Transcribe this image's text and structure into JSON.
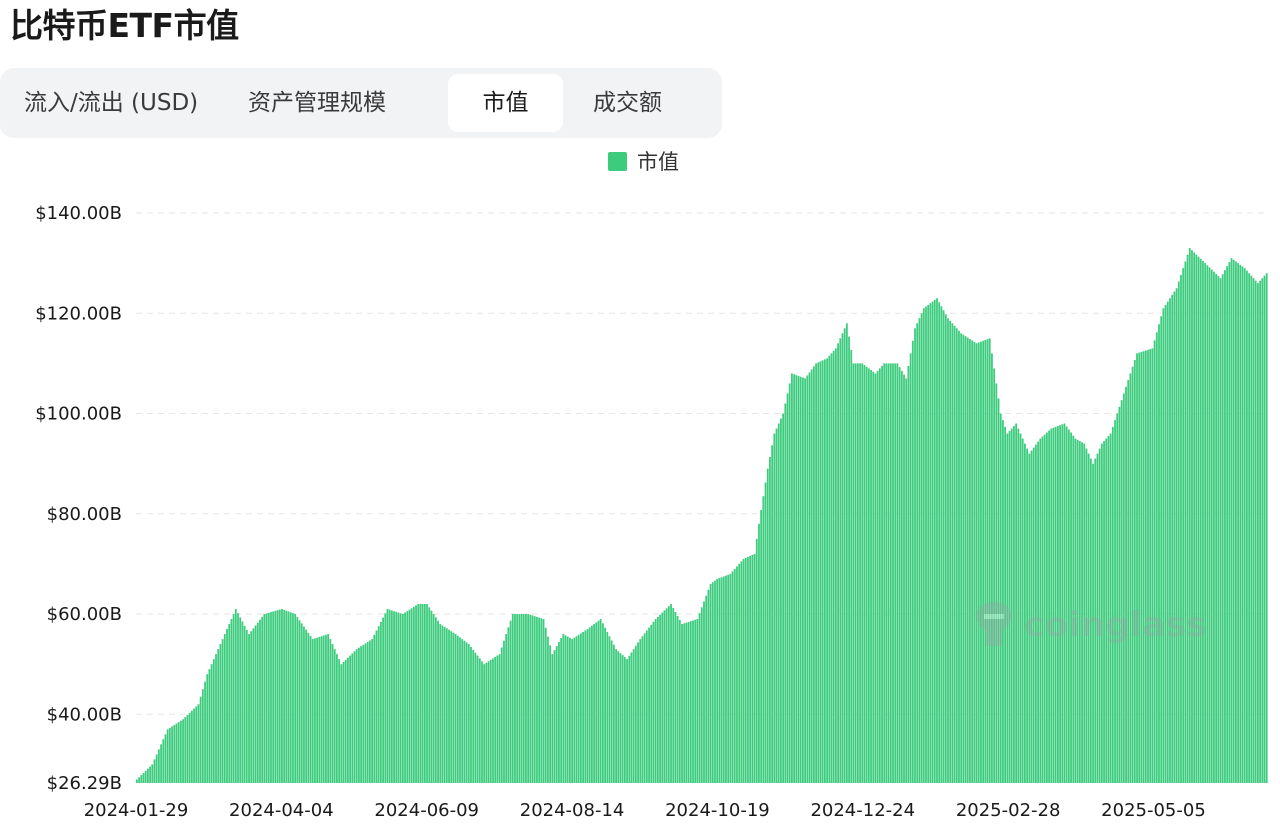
{
  "page": {
    "title": "比特币ETF市值"
  },
  "tabs": [
    {
      "label": "流入/流出 (USD)",
      "active": false
    },
    {
      "label": "资产管理规模",
      "active": false
    },
    {
      "label": "市值",
      "active": true
    },
    {
      "label": "成交额",
      "active": false
    }
  ],
  "watermark": {
    "text": "coinglass",
    "icon": "coinglass-logo-icon"
  },
  "colors": {
    "bar": "#3dcc7e",
    "grid": "#e6e6e6"
  },
  "chart_data": {
    "type": "bar",
    "title": "",
    "xlabel": "",
    "ylabel": "",
    "grid": true,
    "legend_position": "top-center",
    "series": [
      {
        "name": "市值",
        "color": "#3dcc7e",
        "anchor_points": [
          [
            "2024-01-29",
            27
          ],
          [
            "2024-02-05",
            30
          ],
          [
            "2024-02-12",
            37
          ],
          [
            "2024-02-19",
            39
          ],
          [
            "2024-02-26",
            42
          ],
          [
            "2024-03-01",
            48
          ],
          [
            "2024-03-08",
            55
          ],
          [
            "2024-03-14",
            61
          ],
          [
            "2024-03-20",
            56
          ],
          [
            "2024-03-27",
            60
          ],
          [
            "2024-04-04",
            61
          ],
          [
            "2024-04-10",
            60
          ],
          [
            "2024-04-18",
            55
          ],
          [
            "2024-04-25",
            56
          ],
          [
            "2024-05-01",
            50
          ],
          [
            "2024-05-08",
            53
          ],
          [
            "2024-05-15",
            55
          ],
          [
            "2024-05-22",
            61
          ],
          [
            "2024-05-29",
            60
          ],
          [
            "2024-06-05",
            62
          ],
          [
            "2024-06-09",
            62
          ],
          [
            "2024-06-15",
            58
          ],
          [
            "2024-06-22",
            56
          ],
          [
            "2024-06-28",
            54
          ],
          [
            "2024-07-05",
            50
          ],
          [
            "2024-07-12",
            52
          ],
          [
            "2024-07-18",
            60
          ],
          [
            "2024-07-25",
            60
          ],
          [
            "2024-08-01",
            59
          ],
          [
            "2024-08-05",
            52
          ],
          [
            "2024-08-10",
            56
          ],
          [
            "2024-08-14",
            55
          ],
          [
            "2024-08-21",
            57
          ],
          [
            "2024-08-27",
            59
          ],
          [
            "2024-09-03",
            53
          ],
          [
            "2024-09-08",
            51
          ],
          [
            "2024-09-14",
            55
          ],
          [
            "2024-09-21",
            59
          ],
          [
            "2024-09-28",
            62
          ],
          [
            "2024-10-03",
            58
          ],
          [
            "2024-10-10",
            59
          ],
          [
            "2024-10-16",
            66
          ],
          [
            "2024-10-19",
            67
          ],
          [
            "2024-10-25",
            68
          ],
          [
            "2024-10-31",
            71
          ],
          [
            "2024-11-05",
            72
          ],
          [
            "2024-11-07",
            78
          ],
          [
            "2024-11-11",
            89
          ],
          [
            "2024-11-14",
            96
          ],
          [
            "2024-11-18",
            100
          ],
          [
            "2024-11-22",
            108
          ],
          [
            "2024-11-28",
            107
          ],
          [
            "2024-12-03",
            110
          ],
          [
            "2024-12-08",
            111
          ],
          [
            "2024-12-12",
            113
          ],
          [
            "2024-12-17",
            118
          ],
          [
            "2024-12-20",
            110
          ],
          [
            "2024-12-24",
            110
          ],
          [
            "2024-12-30",
            108
          ],
          [
            "2025-01-03",
            110
          ],
          [
            "2025-01-09",
            110
          ],
          [
            "2025-01-13",
            107
          ],
          [
            "2025-01-17",
            117
          ],
          [
            "2025-01-21",
            121
          ],
          [
            "2025-01-27",
            123
          ],
          [
            "2025-02-01",
            119
          ],
          [
            "2025-02-07",
            116
          ],
          [
            "2025-02-14",
            114
          ],
          [
            "2025-02-20",
            115
          ],
          [
            "2025-02-25",
            100
          ],
          [
            "2025-02-28",
            96
          ],
          [
            "2025-03-04",
            98
          ],
          [
            "2025-03-10",
            92
          ],
          [
            "2025-03-15",
            95
          ],
          [
            "2025-03-20",
            97
          ],
          [
            "2025-03-26",
            98
          ],
          [
            "2025-03-31",
            95
          ],
          [
            "2025-04-04",
            94
          ],
          [
            "2025-04-08",
            90
          ],
          [
            "2025-04-12",
            94
          ],
          [
            "2025-04-16",
            96
          ],
          [
            "2025-04-22",
            104
          ],
          [
            "2025-04-28",
            112
          ],
          [
            "2025-05-05",
            113
          ],
          [
            "2025-05-10",
            121
          ],
          [
            "2025-05-16",
            125
          ],
          [
            "2025-05-22",
            133
          ],
          [
            "2025-05-29",
            130
          ],
          [
            "2025-06-05",
            127
          ],
          [
            "2025-06-10",
            131
          ],
          [
            "2025-06-16",
            129
          ],
          [
            "2025-06-22",
            126
          ],
          [
            "2025-06-26",
            128
          ]
        ]
      }
    ],
    "x_start": "2024-01-29",
    "x_end": "2025-06-26",
    "x_tick_labels": [
      "2024-01-29",
      "2024-04-04",
      "2024-06-09",
      "2024-08-14",
      "2024-10-19",
      "2024-12-24",
      "2025-02-28",
      "2025-05-05"
    ],
    "y_ticks": [
      {
        "value": 26.29,
        "label": "$26.29B"
      },
      {
        "value": 40,
        "label": "$40.00B"
      },
      {
        "value": 60,
        "label": "$60.00B"
      },
      {
        "value": 80,
        "label": "$80.00B"
      },
      {
        "value": 100,
        "label": "$100.00B"
      },
      {
        "value": 120,
        "label": "$120.00B"
      },
      {
        "value": 140,
        "label": "$140.00B"
      }
    ],
    "ylim": [
      26.29,
      140
    ]
  }
}
